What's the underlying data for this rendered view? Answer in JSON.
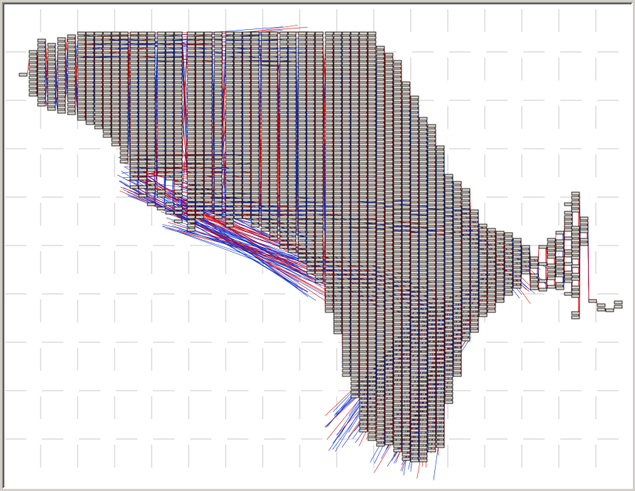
{
  "diagram": {
    "background": "#ffffff",
    "grid_color": "#c8c8c8",
    "node_fill": "#d8d2c8",
    "node_stroke": "#000000",
    "edge_colors": [
      "#e00000",
      "#0030e0"
    ],
    "node_icon": "graph-node-box"
  }
}
